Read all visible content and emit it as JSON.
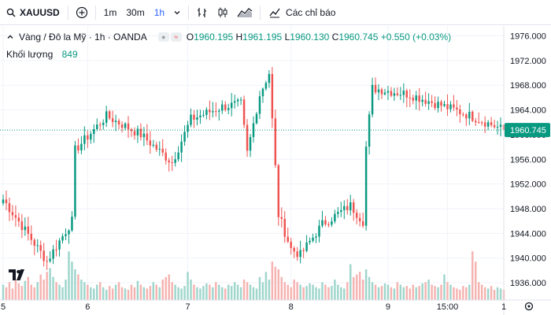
{
  "toolbar": {
    "symbol": "XAUUSD",
    "intervals": [
      "1m",
      "30m",
      "1h"
    ],
    "active_interval": "1h",
    "indicators_label": "Các chỉ báo"
  },
  "legend": {
    "title": "Vàng / Đô la Mỹ · 1h · OANDA",
    "open_key": "O",
    "open": "1960.195",
    "high_key": "H",
    "high": "1961.195",
    "low_key": "L",
    "low": "1960.130",
    "close_key": "C",
    "close": "1960.745",
    "change": "+0.550 (+0.03%)",
    "volume_label": "Khối lượng",
    "volume_value": "849"
  },
  "colors": {
    "up": "#089981",
    "down": "#ef5350",
    "up_vol": "#9fd6cc",
    "down_vol": "#f5b3b1",
    "accent": "#2962ff"
  },
  "chart_data": {
    "type": "candlestick",
    "title": "Vàng / Đô la Mỹ · 1h · OANDA",
    "ylim": [
      1933.2,
      1977.6
    ],
    "y_ticks": [
      "1976.000",
      "1972.000",
      "1968.000",
      "1964.000",
      "1960.000",
      "1956.000",
      "1952.000",
      "1948.000",
      "1944.000",
      "1940.000",
      "1936.000"
    ],
    "y_tick_values": [
      1976,
      1972,
      1968,
      1964,
      1960,
      1956,
      1952,
      1948,
      1944,
      1940,
      1936
    ],
    "x_ticks": [
      "5",
      "6",
      "7",
      "8",
      "9",
      "15:00",
      "1"
    ],
    "x_tick_index": [
      0,
      27,
      59,
      92,
      123,
      142,
      160
    ],
    "last_price": "1960.745",
    "last_price_value": 1960.745,
    "series": [
      {
        "name": "OHLC",
        "key_points": [
          {
            "x": 0,
            "price": 1949.5
          },
          {
            "x": 14,
            "price": 1939.5
          },
          {
            "x": 22,
            "price": 1946.0
          },
          {
            "x": 23,
            "price": 1957.5
          },
          {
            "x": 33,
            "price": 1963.0
          },
          {
            "x": 44,
            "price": 1960.0
          },
          {
            "x": 54,
            "price": 1955.5
          },
          {
            "x": 60,
            "price": 1962.5
          },
          {
            "x": 70,
            "price": 1964.5
          },
          {
            "x": 76,
            "price": 1965.0
          },
          {
            "x": 78,
            "price": 1957.0
          },
          {
            "x": 82,
            "price": 1966.5
          },
          {
            "x": 85,
            "price": 1970.0
          },
          {
            "x": 88,
            "price": 1947.0
          },
          {
            "x": 92,
            "price": 1941.5
          },
          {
            "x": 95,
            "price": 1940.5
          },
          {
            "x": 102,
            "price": 1945.5
          },
          {
            "x": 111,
            "price": 1948.5
          },
          {
            "x": 115,
            "price": 1946.0
          },
          {
            "x": 116,
            "price": 1958.0
          },
          {
            "x": 118,
            "price": 1967.5
          },
          {
            "x": 130,
            "price": 1966.5
          },
          {
            "x": 147,
            "price": 1963.5
          },
          {
            "x": 152,
            "price": 1962.5
          },
          {
            "x": 160,
            "price": 1960.745
          }
        ]
      },
      {
        "name": "Khối lượng",
        "values": [
          12,
          10,
          14,
          9,
          16,
          13,
          11,
          15,
          18,
          12,
          10,
          14,
          20,
          16,
          22,
          25,
          18,
          14,
          12,
          10,
          16,
          38,
          30,
          24,
          20,
          16,
          14,
          12,
          10,
          9,
          12,
          14,
          10,
          8,
          11,
          9,
          12,
          14,
          10,
          9,
          8,
          12,
          10,
          15,
          12,
          10,
          9,
          11,
          14,
          12,
          10,
          16,
          18,
          20,
          14,
          12,
          10,
          9,
          11,
          22,
          16,
          12,
          10,
          9,
          11,
          13,
          12,
          10,
          14,
          12,
          10,
          9,
          12,
          11,
          14,
          12,
          10,
          16,
          14,
          12,
          10,
          9,
          18,
          14,
          22,
          16,
          30,
          26,
          24,
          18,
          14,
          12,
          10,
          16,
          14,
          12,
          10,
          11,
          13,
          12,
          10,
          9,
          14,
          12,
          10,
          11,
          16,
          12,
          10,
          9,
          14,
          28,
          18,
          20,
          22,
          16,
          24,
          18,
          14,
          12,
          10,
          11,
          13,
          12,
          10,
          9,
          14,
          12,
          10,
          11,
          9,
          12,
          10,
          11,
          13,
          14,
          16,
          12,
          11,
          10,
          12,
          20,
          14,
          12,
          10,
          9,
          8,
          11,
          10,
          12,
          38,
          30,
          14,
          12,
          10,
          9,
          11,
          8,
          10,
          9,
          8
        ]
      }
    ],
    "volume_note": "volume scaled 0-40"
  }
}
